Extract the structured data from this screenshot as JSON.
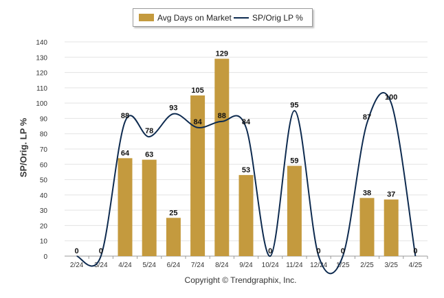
{
  "legend": {
    "bar_label": "Avg Days on Market",
    "line_label": "SP/Orig LP %"
  },
  "credit": "Copyright © Trendgraphix, Inc.",
  "colors": {
    "bar": "#c49a3e",
    "line": "#0d2a4f",
    "grid": "#e3e3e3"
  },
  "chart_data": {
    "type": "bar",
    "categories": [
      "2/24",
      "3/24",
      "4/24",
      "5/24",
      "6/24",
      "7/24",
      "8/24",
      "9/24",
      "10/24",
      "11/24",
      "12/24",
      "1/25",
      "2/25",
      "3/25",
      "4/25"
    ],
    "ylabel": "SP/Orig. LP %",
    "ylim": [
      0,
      140
    ],
    "yticks": [
      0,
      10,
      20,
      30,
      40,
      50,
      60,
      70,
      80,
      90,
      100,
      110,
      120,
      130,
      140
    ],
    "grid": true,
    "legend_position": "top-center",
    "series": [
      {
        "name": "Avg Days on Market",
        "kind": "bar",
        "values": [
          0,
          0,
          64,
          63,
          25,
          105,
          129,
          53,
          0,
          59,
          0,
          0,
          38,
          37,
          0
        ]
      },
      {
        "name": "SP/Orig LP %",
        "kind": "line",
        "values": [
          0,
          0,
          88,
          78,
          93,
          84,
          88,
          84,
          0,
          95,
          0,
          0,
          87,
          100,
          0
        ]
      }
    ]
  }
}
